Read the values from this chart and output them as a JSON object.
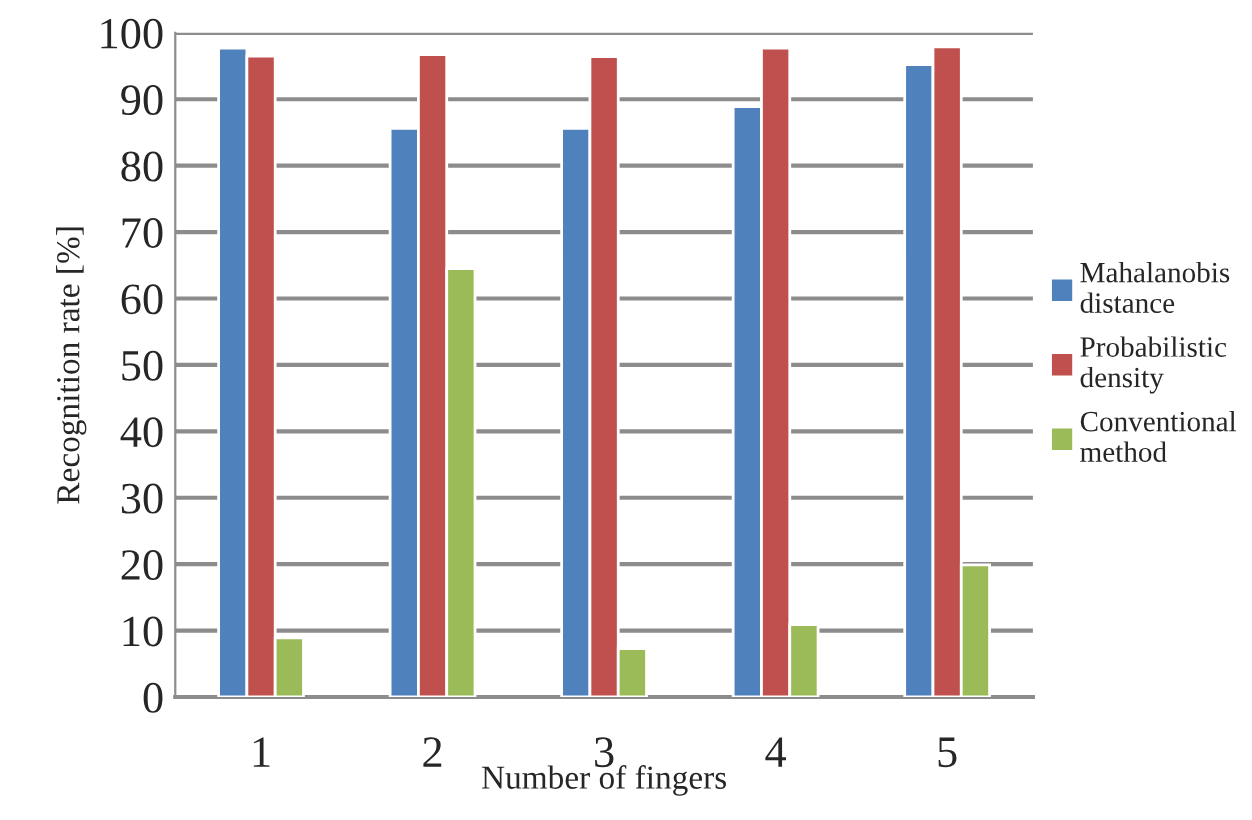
{
  "chart_data": {
    "type": "bar",
    "xlabel": "Number of fingers",
    "ylabel": "Recognition rate [%]",
    "categories": [
      "1",
      "2",
      "3",
      "4",
      "5"
    ],
    "series": [
      {
        "name": "Mahalanobis distance",
        "color": "#4f81bd",
        "values": [
          97.7,
          85.6,
          85.6,
          88.9,
          95.2
        ]
      },
      {
        "name": "Probabilistic density",
        "color": "#c0504d",
        "values": [
          96.5,
          96.7,
          96.4,
          97.7,
          97.9
        ]
      },
      {
        "name": "Conventional method",
        "color": "#9bbb59",
        "values": [
          8.9,
          64.5,
          7.3,
          10.9,
          19.9
        ]
      }
    ],
    "ylim": [
      0,
      100
    ],
    "yticks": [
      0,
      10,
      20,
      30,
      40,
      50,
      60,
      70,
      80,
      90,
      100
    ],
    "grid": "y",
    "legend": "right"
  }
}
